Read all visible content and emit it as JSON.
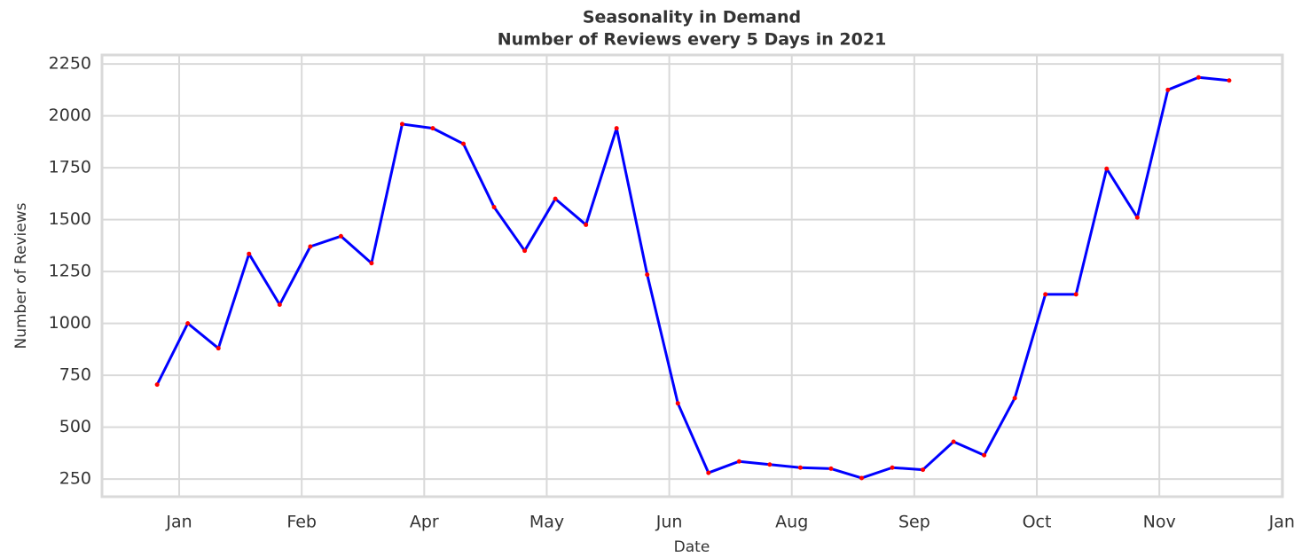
{
  "chart_data": {
    "type": "line",
    "title": "Seasonality in Demand",
    "subtitle": "Number of Reviews every 5 Days in 2021",
    "x_label": "Date",
    "y_label": "Number of Reviews",
    "x": [
      0,
      1,
      2,
      3,
      4,
      5,
      6,
      7,
      8,
      9,
      10,
      11,
      12,
      13,
      14,
      15,
      16,
      17,
      18,
      19,
      20,
      21,
      22,
      23,
      24,
      25,
      26,
      27,
      28,
      29,
      30,
      31,
      32,
      33,
      34,
      35
    ],
    "series": [
      {
        "name": "Number of Reviews",
        "color": "#0000ff",
        "marker_color": "#ff0000",
        "values": [
          705,
          1000,
          880,
          1335,
          1090,
          1370,
          1420,
          1290,
          1960,
          1940,
          1865,
          1560,
          1350,
          1600,
          1475,
          1940,
          1235,
          615,
          280,
          335,
          320,
          305,
          300,
          255,
          305,
          295,
          430,
          365,
          640,
          1140,
          1140,
          1745,
          1510,
          2125,
          2185,
          2170
        ]
      }
    ],
    "xlim": [
      -1.8,
      36.74
    ],
    "xticks": [
      {
        "value": 0.72,
        "label": "Jan"
      },
      {
        "value": 4.72,
        "label": "Feb"
      },
      {
        "value": 8.72,
        "label": "Apr"
      },
      {
        "value": 12.72,
        "label": "May"
      },
      {
        "value": 16.72,
        "label": "Jun"
      },
      {
        "value": 20.72,
        "label": "Aug"
      },
      {
        "value": 24.72,
        "label": "Sep"
      },
      {
        "value": 28.72,
        "label": "Oct"
      },
      {
        "value": 32.72,
        "label": "Nov"
      },
      {
        "value": 36.72,
        "label": "Jan"
      }
    ],
    "ylim": [
      165,
      2293
    ],
    "yticks": [
      250,
      500,
      750,
      1000,
      1250,
      1500,
      1750,
      2000,
      2250
    ],
    "grid": true
  }
}
